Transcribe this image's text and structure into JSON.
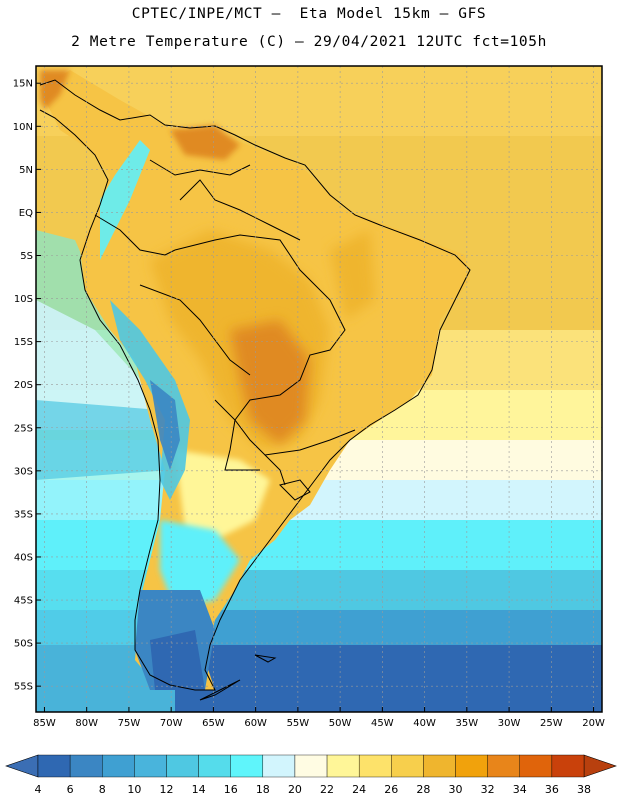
{
  "header": {
    "line1": "CPTEC/INPE/MCT –  Eta Model 15km – GFS",
    "line2": "2 Metre Temperature (C) – 29/04/2021 12UTC fct=105h"
  },
  "map": {
    "lon_range": [
      -86,
      -19
    ],
    "lat_range": [
      -58,
      17
    ],
    "lat_ticks": [
      {
        "v": 15,
        "label": "15N"
      },
      {
        "v": 10,
        "label": "10N"
      },
      {
        "v": 5,
        "label": "5N"
      },
      {
        "v": 0,
        "label": "EQ"
      },
      {
        "v": -5,
        "label": "5S"
      },
      {
        "v": -10,
        "label": "10S"
      },
      {
        "v": -15,
        "label": "15S"
      },
      {
        "v": -20,
        "label": "20S"
      },
      {
        "v": -25,
        "label": "25S"
      },
      {
        "v": -30,
        "label": "30S"
      },
      {
        "v": -35,
        "label": "35S"
      },
      {
        "v": -40,
        "label": "40S"
      },
      {
        "v": -45,
        "label": "45S"
      },
      {
        "v": -50,
        "label": "50S"
      },
      {
        "v": -55,
        "label": "55S"
      }
    ],
    "lon_ticks": [
      {
        "v": -85,
        "label": "85W"
      },
      {
        "v": -80,
        "label": "80W"
      },
      {
        "v": -75,
        "label": "75W"
      },
      {
        "v": -70,
        "label": "70W"
      },
      {
        "v": -65,
        "label": "65W"
      },
      {
        "v": -60,
        "label": "60W"
      },
      {
        "v": -55,
        "label": "55W"
      },
      {
        "v": -50,
        "label": "50W"
      },
      {
        "v": -45,
        "label": "45W"
      },
      {
        "v": -40,
        "label": "40W"
      },
      {
        "v": -35,
        "label": "35W"
      },
      {
        "v": -30,
        "label": "30W"
      },
      {
        "v": -25,
        "label": "25W"
      },
      {
        "v": -20,
        "label": "20W"
      }
    ]
  },
  "colorbar": {
    "unit": "C",
    "boundaries": [
      "4",
      "6",
      "8",
      "10",
      "12",
      "14",
      "16",
      "18",
      "20",
      "22",
      "24",
      "26",
      "28",
      "30",
      "32",
      "34",
      "36",
      "38"
    ],
    "colors": [
      "#2f68b2",
      "#3b86c3",
      "#3fa0d2",
      "#49b4dc",
      "#4fc8e2",
      "#55dceb",
      "#5ff5fb",
      "#d2f5fd",
      "#fffce3",
      "#fff698",
      "#fde26a",
      "#f7cf4c",
      "#efb52e",
      "#f1a20c",
      "#e8851a",
      "#e0640b",
      "#c9410b"
    ],
    "end_low": "#3b6eb4",
    "end_high": "#b8400e"
  },
  "legend_colors": {
    "ocean_far": "#2e66b0",
    "land_hot": "#e08a22",
    "coastline": "#000000"
  }
}
